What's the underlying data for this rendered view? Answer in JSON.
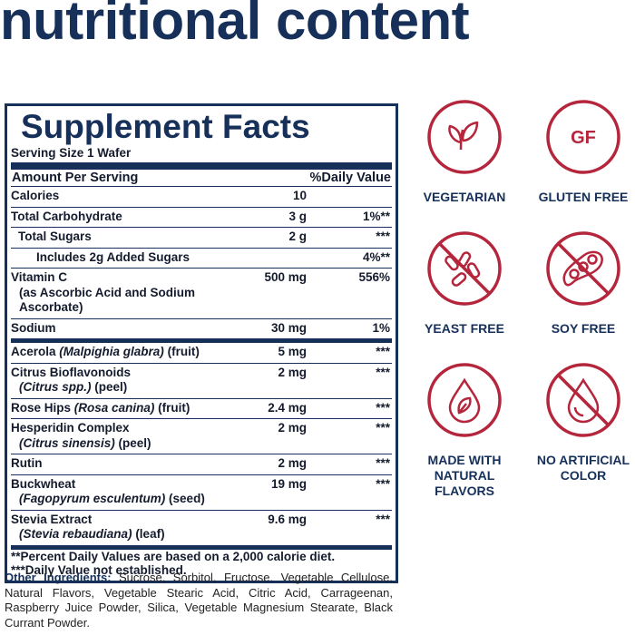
{
  "header": {
    "title": "nutritional content"
  },
  "facts": {
    "title": "Supplement Facts",
    "serving": "Serving Size 1 Wafer",
    "col_amount": "Amount Per Serving",
    "col_dv": "%Daily Value",
    "rows": [
      {
        "lines": [
          [
            "Calories"
          ]
        ],
        "amount": "10"
      },
      {
        "lines": [
          [
            "Total Carbohydrate"
          ]
        ],
        "amount": "3 g",
        "dv": "1%**"
      },
      {
        "lines": [
          [
            "Total Sugars"
          ]
        ],
        "amount": "2 g",
        "dv": "***",
        "indent": 1
      },
      {
        "lines": [
          [
            "Includes 2g Added Sugars"
          ]
        ],
        "dv": "4%**",
        "indent": 2
      },
      {
        "lines": [
          [
            "Vitamin C"
          ],
          [
            "(as Ascorbic Acid and Sodium Ascorbate)"
          ]
        ],
        "amount": "500 mg",
        "dv": "556%"
      },
      {
        "lines": [
          [
            "Sodium"
          ]
        ],
        "amount": "30 mg",
        "dv": "1%",
        "rule": "thick"
      },
      {
        "lines": [
          [
            "Acerola",
            {
              "text": "(Malpighia glabra)",
              "italic": true
            },
            "(fruit)"
          ]
        ],
        "amount": "5 mg",
        "dv": "***"
      },
      {
        "lines": [
          [
            "Citrus Bioflavonoids"
          ],
          [
            {
              "text": "(Citrus spp.)",
              "italic": true
            },
            "(peel)"
          ]
        ],
        "amount": "2 mg",
        "dv": "***"
      },
      {
        "lines": [
          [
            "Rose Hips",
            {
              "text": "(Rosa canina)",
              "italic": true
            },
            "(fruit)"
          ]
        ],
        "amount": "2.4 mg",
        "dv": "***"
      },
      {
        "lines": [
          [
            "Hesperidin Complex"
          ],
          [
            {
              "text": "(Citrus sinensis)",
              "italic": true
            },
            "(peel)"
          ]
        ],
        "amount": "2 mg",
        "dv": "***"
      },
      {
        "lines": [
          [
            "Rutin"
          ]
        ],
        "amount": "2 mg",
        "dv": "***"
      },
      {
        "lines": [
          [
            "Buckwheat"
          ],
          [
            {
              "text": "(Fagopyrum esculentum)",
              "italic": true
            },
            "(seed)"
          ]
        ],
        "amount": "19 mg",
        "dv": "***"
      },
      {
        "lines": [
          [
            "Stevia Extract"
          ],
          [
            {
              "text": "(Stevia rebaudiana)",
              "italic": true
            },
            "(leaf)"
          ]
        ],
        "amount": "9.6 mg",
        "dv": "***",
        "rule": "thick"
      }
    ],
    "footnotes": [
      "**Percent Daily Values are based on a 2,000 calorie diet.",
      "***Daily Value not established."
    ]
  },
  "other": {
    "label": "Other Ingredients:",
    "text": "Sucrose, Sorbitol, Fructose, Vegetable Cellulose, Natural Flavors, Vegetable Stearic Acid, Citric Acid, Carrageenan, Raspberry Juice Powder, Silica, Vegetable Magnesium Stearate, Black Currant Powder."
  },
  "badges": [
    {
      "label": "VEGETARIAN"
    },
    {
      "label": "GLUTEN FREE",
      "icon_text": "GF"
    },
    {
      "label": "YEAST FREE"
    },
    {
      "label": "SOY FREE"
    },
    {
      "label": "MADE WITH NATURAL FLAVORS"
    },
    {
      "label": "NO ARTIFICIAL COLOR"
    }
  ]
}
